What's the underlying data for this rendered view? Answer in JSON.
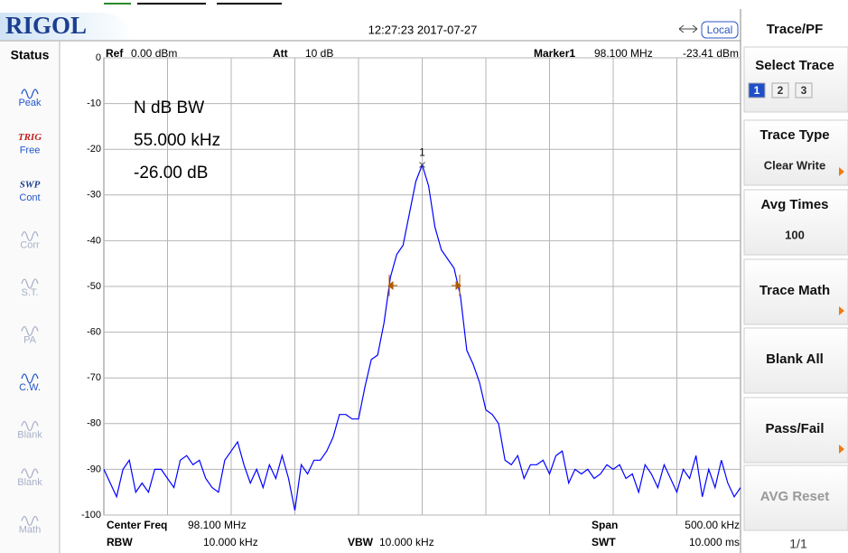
{
  "header": {
    "logo": "RIGOL",
    "datetime": "12:27:23 2017-07-27",
    "mode": "Local"
  },
  "status": {
    "title": "Status",
    "items": [
      {
        "label": "Peak",
        "active": true
      },
      {
        "top": "TRIG",
        "label": "Free",
        "active": true
      },
      {
        "top": "SWP",
        "label": "Cont",
        "active": true
      },
      {
        "label": "Corr",
        "active": false
      },
      {
        "label": "S.T.",
        "active": false
      },
      {
        "label": "PA",
        "active": false
      },
      {
        "label": "C.W.",
        "active": true
      },
      {
        "label": "Blank",
        "active": false
      },
      {
        "label": "Blank",
        "active": false
      },
      {
        "label": "Math",
        "active": false
      }
    ]
  },
  "settings": {
    "ref_label": "Ref",
    "ref": "0.00 dBm",
    "att_label": "Att",
    "att": "10 dB",
    "marker_label": "Marker1",
    "marker_freq": "98.100 MHz",
    "marker_level": "-23.41 dBm",
    "center_label": "Center Freq",
    "center": "98.100 MHz",
    "span_label": "Span",
    "span": "500.00 kHz",
    "rbw_label": "RBW",
    "rbw": "10.000 kHz",
    "vbw_label": "VBW",
    "vbw": "10.000 kHz",
    "swt_label": "SWT",
    "swt": "10.000 ms"
  },
  "measurement": {
    "title": "N dB BW",
    "bandwidth": "55.000 kHz",
    "ndb": "-26.00 dB"
  },
  "menu": {
    "title": "Trace/PF",
    "items": [
      {
        "label": "Select Trace",
        "options": [
          "1",
          "2",
          "3"
        ]
      },
      {
        "label": "Trace Type",
        "value": "Clear Write",
        "submenu": true
      },
      {
        "label": "Avg Times",
        "value": "100"
      },
      {
        "label": "Trace Math",
        "submenu": true
      },
      {
        "label": "Blank All"
      },
      {
        "label": "Pass/Fail",
        "submenu": true
      },
      {
        "label": "AVG Reset",
        "disabled": true
      }
    ],
    "page": "1/1"
  },
  "chart_data": {
    "type": "line",
    "color": "#0000ff",
    "grid": true,
    "marker": "1",
    "xlim": [
      97.85,
      98.35
    ],
    "ylim": [
      -100,
      0
    ],
    "yticks": [
      0,
      -10,
      -20,
      -30,
      -40,
      -50,
      -60,
      -70,
      -80,
      -90,
      -100
    ],
    "x": [
      97.85,
      97.855,
      97.86,
      97.865,
      97.87,
      97.875,
      97.88,
      97.885,
      97.89,
      97.895,
      97.9,
      97.905,
      97.91,
      97.915,
      97.92,
      97.925,
      97.93,
      97.935,
      97.94,
      97.945,
      97.95,
      97.955,
      97.96,
      97.965,
      97.97,
      97.975,
      97.98,
      97.985,
      97.99,
      97.995,
      98,
      98.005,
      98.01,
      98.015,
      98.02,
      98.025,
      98.03,
      98.035,
      98.04,
      98.045,
      98.05,
      98.055,
      98.06,
      98.065,
      98.07,
      98.075,
      98.08,
      98.085,
      98.09,
      98.095,
      98.1,
      98.105,
      98.11,
      98.115,
      98.12,
      98.125,
      98.13,
      98.135,
      98.14,
      98.145,
      98.15,
      98.155,
      98.16,
      98.165,
      98.17,
      98.175,
      98.18,
      98.185,
      98.19,
      98.195,
      98.2,
      98.205,
      98.21,
      98.215,
      98.22,
      98.225,
      98.23,
      98.235,
      98.24,
      98.245,
      98.25,
      98.255,
      98.26,
      98.265,
      98.27,
      98.275,
      98.28,
      98.285,
      98.29,
      98.295,
      98.3,
      98.305,
      98.31,
      98.315,
      98.32,
      98.325,
      98.33,
      98.335,
      98.34,
      98.345,
      98.35
    ],
    "values": [
      -90,
      -93,
      -96,
      -90,
      -88,
      -95,
      -93,
      -95,
      -90,
      -90,
      -92,
      -94,
      -88,
      -87,
      -89,
      -88,
      -92,
      -94,
      -95,
      -88,
      -86,
      -84,
      -89,
      -93,
      -90,
      -94,
      -89,
      -92,
      -87,
      -92,
      -99,
      -89,
      -91,
      -88,
      -88,
      -86,
      -83,
      -78,
      -78,
      -79,
      -79,
      -72,
      -66,
      -65,
      -58,
      -48,
      -43,
      -41,
      -34,
      -27,
      -23.41,
      -28,
      -37,
      -42,
      -44,
      -46,
      -52,
      -64,
      -67,
      -71,
      -77,
      -78,
      -80,
      -88,
      -89,
      -87,
      -92,
      -89,
      -89,
      -88,
      -91,
      -87,
      -86,
      -93,
      -90,
      -91,
      -90,
      -92,
      -91,
      -89,
      -90,
      -89,
      -92,
      -91,
      -95,
      -89,
      -91,
      -94,
      -89,
      -92,
      -95,
      -90,
      -92,
      -87,
      -96,
      -90,
      -94,
      -88,
      -93,
      -96,
      -94
    ]
  }
}
